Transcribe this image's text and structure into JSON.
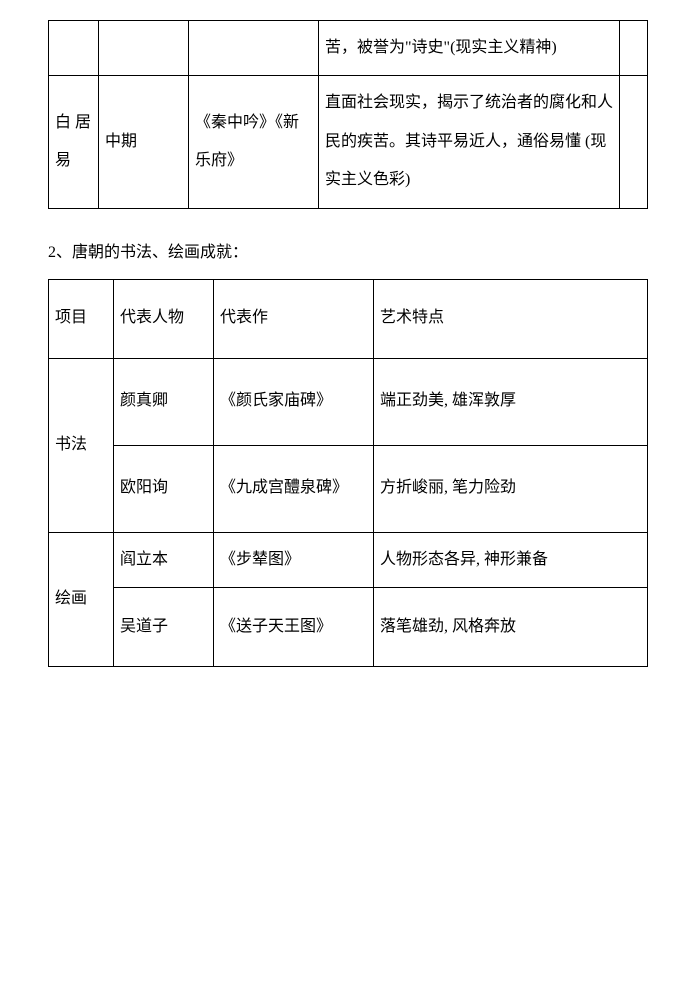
{
  "table1": {
    "row1": {
      "c1": "",
      "c2": "",
      "c3": "",
      "c4": "苦，被誉为\"诗史\"(现实主义精神)",
      "c5": ""
    },
    "row2": {
      "c1": "白 居易",
      "c2": "中期",
      "c3": "《秦中吟》《新乐府》",
      "c4": "直面社会现实，揭示了统治者的腐化和人民的疾苦。其诗平易近人，通俗易懂 (现实主义色彩)",
      "c5": ""
    }
  },
  "section2_title": "2、唐朝的书法、绘画成就：",
  "table2": {
    "header": {
      "c1": "项目",
      "c2": "代表人物",
      "c3": "代表作",
      "c4": "艺术特点"
    },
    "rows": [
      {
        "c1": "书法",
        "c2": "颜真卿",
        "c3": "《颜氏家庙碑》",
        "c4": "端正劲美, 雄浑敦厚"
      },
      {
        "c1": "",
        "c2": "欧阳询",
        "c3": "《九成宫醴泉碑》",
        "c4": "方折峻丽, 笔力险劲"
      },
      {
        "c1": "绘画",
        "c2": "阎立本",
        "c3": "《步辇图》",
        "c4": "人物形态各异, 神形兼备"
      },
      {
        "c1": "",
        "c2": "吴道子",
        "c3": "《送子天王图》",
        "c4": "落笔雄劲, 风格奔放"
      }
    ]
  }
}
